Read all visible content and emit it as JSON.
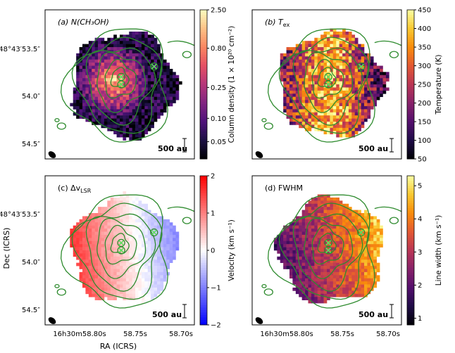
{
  "chart_data": [
    {
      "type": "heatmap",
      "panel": "a",
      "label": "(a) N(CH₃OH)",
      "colormap": "magma",
      "colorbar": {
        "label": "Column density (1 × 10²⁰ cm⁻²)",
        "scale": "log",
        "ticks": [
          "2.50",
          "0.80",
          "0.25",
          "0.10",
          "0.05"
        ],
        "tick_values": [
          2.5,
          0.8,
          0.25,
          0.1,
          0.05
        ],
        "range": [
          0.03,
          2.5
        ]
      },
      "scalebar": "500 au"
    },
    {
      "type": "heatmap",
      "panel": "b",
      "label": "(b) T",
      "label_sub": "ex",
      "colormap": "inferno",
      "colorbar": {
        "label": "Temperature (K)",
        "scale": "linear",
        "ticks": [
          "450",
          "400",
          "350",
          "300",
          "250",
          "200",
          "150",
          "100",
          "50"
        ],
        "tick_values": [
          450,
          400,
          350,
          300,
          250,
          200,
          150,
          100,
          50
        ],
        "range": [
          50,
          450
        ]
      },
      "scalebar": "500 au"
    },
    {
      "type": "heatmap",
      "panel": "c",
      "label": "(c) Δv",
      "label_sub": "LSR",
      "colormap": "bwr",
      "colorbar": {
        "label": "Velocity (km s⁻¹)",
        "scale": "linear",
        "ticks": [
          "2",
          "1",
          "0",
          "−1",
          "−2"
        ],
        "tick_values": [
          2,
          1,
          0,
          -1,
          -2
        ],
        "range": [
          -2,
          2
        ]
      },
      "scalebar": "500 au"
    },
    {
      "type": "heatmap",
      "panel": "d",
      "label": "(d) FWHM",
      "colormap": "inferno",
      "colorbar": {
        "label": "Line width (km s⁻¹)",
        "scale": "linear",
        "ticks": [
          "5",
          "4",
          "3",
          "2",
          "1"
        ],
        "tick_values": [
          5,
          4,
          3,
          2,
          1
        ],
        "range": [
          0.8,
          5.3
        ]
      },
      "scalebar": "500 au"
    }
  ],
  "axes": {
    "xlabel": "RA (ICRS)",
    "ylabel": "Dec (ICRS)",
    "xticks": [
      "16h30m58.80s",
      "58.75s",
      "58.70s"
    ],
    "yticks": [
      "-48°43′53.5″",
      "54.0″",
      "54.5″"
    ]
  },
  "colors": {
    "contour": "#2e8b2e",
    "marker": "#5fdc5f"
  }
}
